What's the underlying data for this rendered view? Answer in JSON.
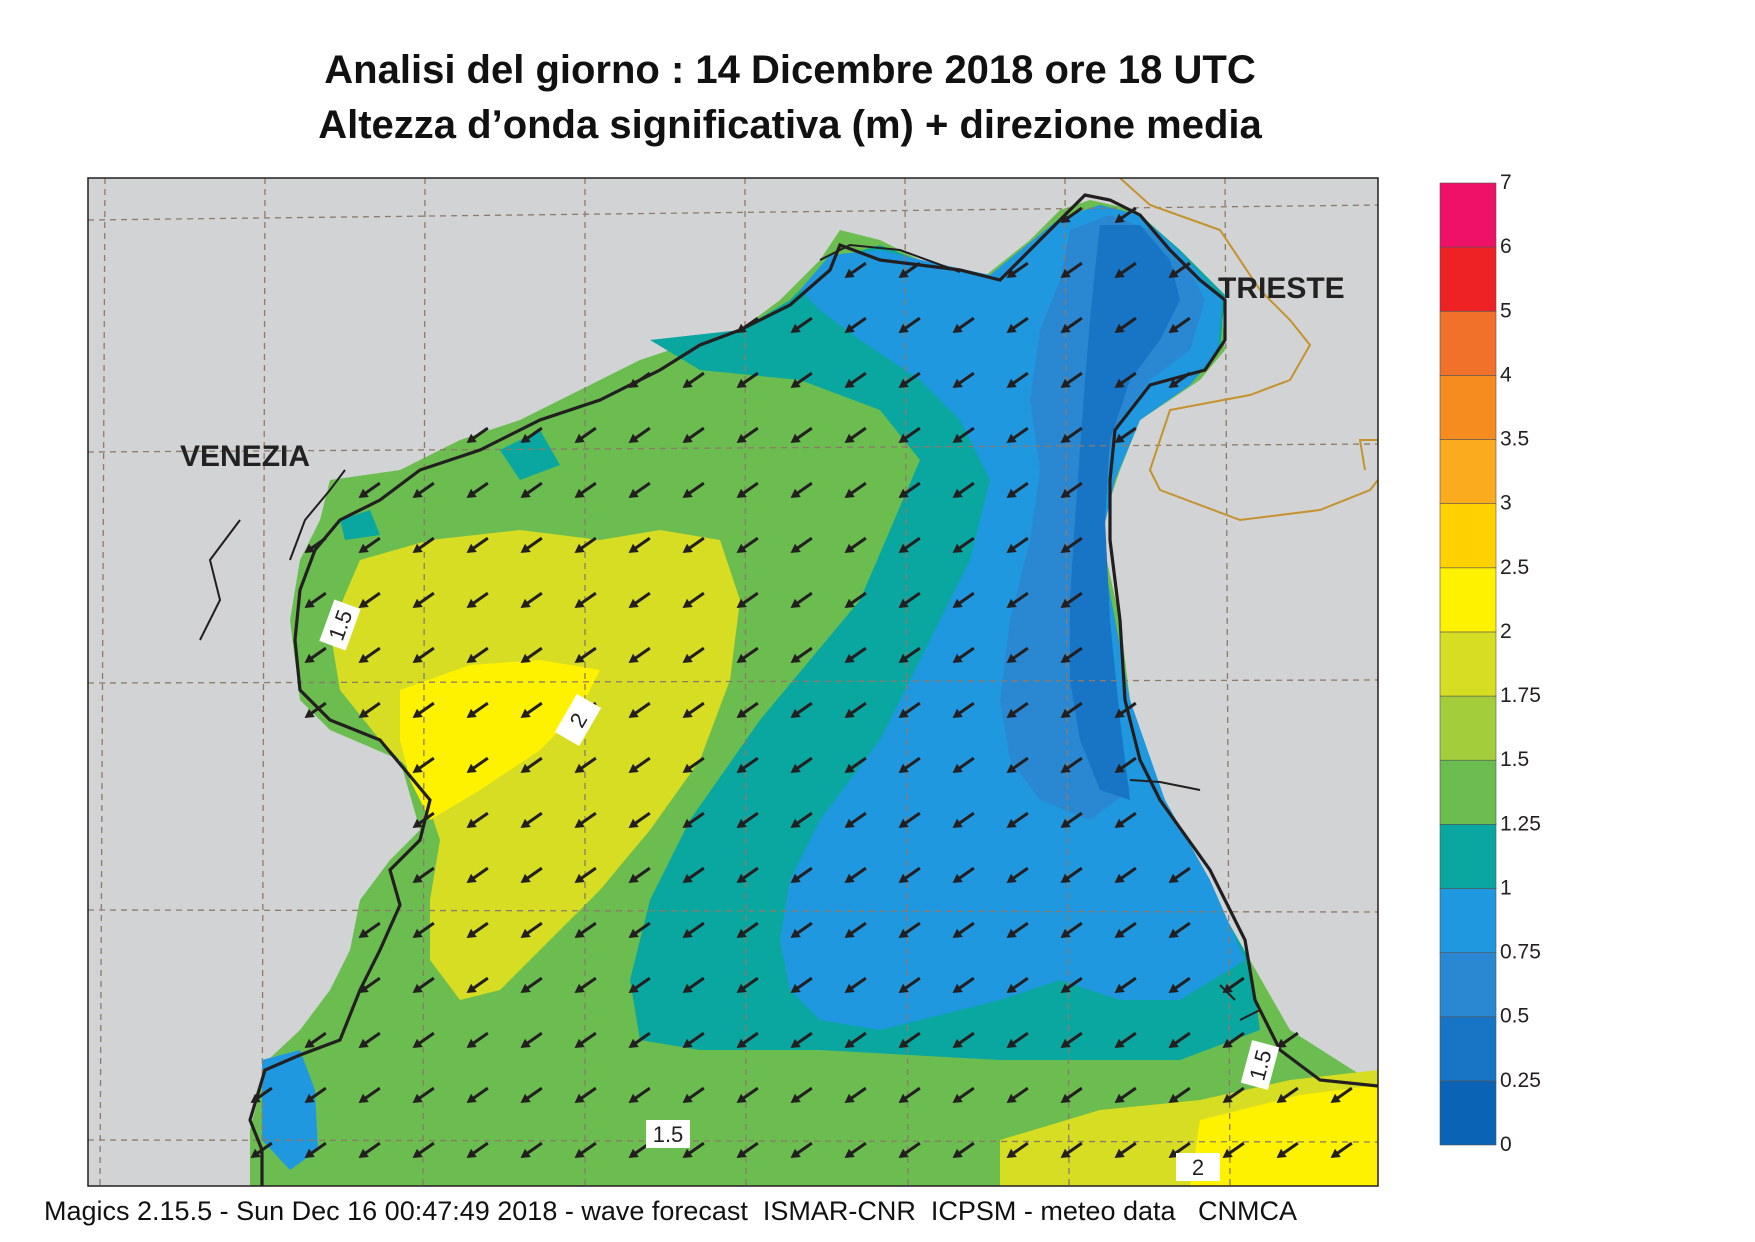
{
  "title_line1": "Analisi del giorno :  14 Dicembre  2018   ore 18 UTC",
  "title_line2": "Altezza d’onda significativa (m) + direzione media",
  "footer": "Magics 2.15.5 - Sun Dec 16 00:47:49 2018 - wave forecast  ISMAR-CNR  ICPSM - meteo data   CNMCA",
  "cities": {
    "venezia": "VENEZIA",
    "trieste": "TRIESTE"
  },
  "legend": {
    "levels": [
      "0",
      "0.25",
      "0.5",
      "0.75",
      "1",
      "1.25",
      "1.5",
      "1.75",
      "2",
      "2.5",
      "3",
      "3.5",
      "4",
      "5",
      "6",
      "7"
    ],
    "colors": [
      "#0a63b4",
      "#1874c4",
      "#2a88d2",
      "#1f98e0",
      "#0aa6a0",
      "#6cbd4f",
      "#a3cd3a",
      "#d7dd22",
      "#fff200",
      "#ffd100",
      "#fbab1e",
      "#f68b20",
      "#f2712a",
      "#ee2124",
      "#ed1267"
    ]
  },
  "contour_labels": [
    "1.5",
    "2",
    "1.5",
    "1.5",
    "2"
  ],
  "colors": {
    "land": "#d1d3d4",
    "grid": "#8c7b6a",
    "border": "#c6922d",
    "arrow": "#231f20"
  }
}
